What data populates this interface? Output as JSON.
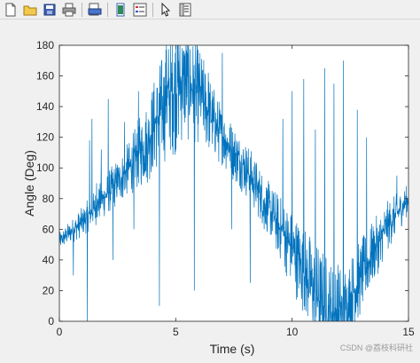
{
  "toolbar": {
    "icons": [
      "new-file-icon",
      "open-folder-icon",
      "save-icon",
      "print-icon",
      "print-preview-icon",
      "link-icon",
      "insert-legend-icon",
      "edit-plot-icon",
      "property-inspector-icon"
    ]
  },
  "watermark": "CSDN @荔枝科研社",
  "chart_data": {
    "type": "line",
    "title": "",
    "xlabel": "Time (s)",
    "ylabel": "Angle (Deg)",
    "xlim": [
      0,
      15
    ],
    "ylim": [
      0,
      180
    ],
    "xticks": [
      0,
      5,
      10,
      15
    ],
    "yticks": [
      0,
      20,
      40,
      60,
      80,
      100,
      120,
      140,
      160,
      180
    ],
    "grid": false,
    "series": [
      {
        "color": "#0072bd",
        "trend": {
          "x": [
            0,
            1,
            2,
            3,
            3.8,
            4.2,
            4.8,
            5.3,
            6.0,
            6.8,
            8.0,
            9.2,
            10.2,
            11.0,
            11.6,
            12.2,
            13.0,
            14.0,
            15.0
          ],
          "y": [
            52,
            65,
            82,
            100,
            118,
            132,
            150,
            157,
            148,
            125,
            100,
            68,
            42,
            18,
            4,
            6,
            30,
            60,
            80
          ]
        },
        "noise_amplitude": [
          {
            "x": 0,
            "amp": 6
          },
          {
            "x": 3,
            "amp": 18
          },
          {
            "x": 5,
            "amp": 45
          },
          {
            "x": 7,
            "amp": 20
          },
          {
            "x": 9,
            "amp": 18
          },
          {
            "x": 11.5,
            "amp": 40
          },
          {
            "x": 13,
            "amp": 25
          },
          {
            "x": 15,
            "amp": 10
          }
        ],
        "spikes": [
          {
            "x": 0.6,
            "y": 30
          },
          {
            "x": 1.2,
            "y": 0
          },
          {
            "x": 1.3,
            "y": 118
          },
          {
            "x": 1.4,
            "y": 132
          },
          {
            "x": 1.6,
            "y": 90
          },
          {
            "x": 1.8,
            "y": 112
          },
          {
            "x": 2.1,
            "y": 145
          },
          {
            "x": 2.3,
            "y": 40
          },
          {
            "x": 2.8,
            "y": 130
          },
          {
            "x": 3.2,
            "y": 60
          },
          {
            "x": 3.4,
            "y": 150
          },
          {
            "x": 4.3,
            "y": 10
          },
          {
            "x": 4.6,
            "y": 180
          },
          {
            "x": 5.0,
            "y": 178
          },
          {
            "x": 5.4,
            "y": 175
          },
          {
            "x": 5.8,
            "y": 20
          },
          {
            "x": 6.4,
            "y": 162
          },
          {
            "x": 7.0,
            "y": 175
          },
          {
            "x": 7.4,
            "y": 60
          },
          {
            "x": 8.2,
            "y": 25
          },
          {
            "x": 8.8,
            "y": 60
          },
          {
            "x": 9.6,
            "y": 132
          },
          {
            "x": 10.0,
            "y": 150
          },
          {
            "x": 10.5,
            "y": 158
          },
          {
            "x": 11.0,
            "y": 125
          },
          {
            "x": 11.4,
            "y": 165
          },
          {
            "x": 11.8,
            "y": 155
          },
          {
            "x": 12.2,
            "y": 170
          },
          {
            "x": 12.8,
            "y": 138
          },
          {
            "x": 13.2,
            "y": 120
          },
          {
            "x": 13.8,
            "y": 40
          },
          {
            "x": 14.5,
            "y": 95
          }
        ]
      }
    ]
  }
}
